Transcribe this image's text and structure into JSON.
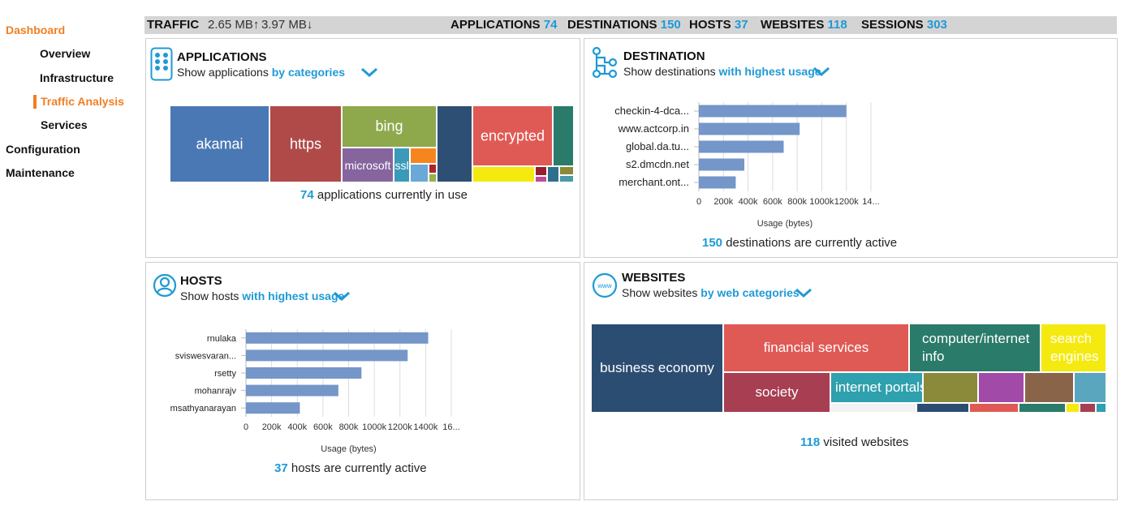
{
  "sidebar": {
    "dashboard": "Dashboard",
    "overview": "Overview",
    "infrastructure": "Infrastructure",
    "traffic_analysis": "Traffic Analysis",
    "services": "Services",
    "configuration": "Configuration",
    "maintenance": "Maintenance"
  },
  "topbar": {
    "traffic_label": "TRAFFIC",
    "upload": "2.65 MB↑",
    "download": "3.97 MB↓",
    "applications_label": "APPLICATIONS",
    "applications_count": "74",
    "destinations_label": "DESTINATIONS",
    "destinations_count": "150",
    "hosts_label": "HOSTS",
    "hosts_count": "37",
    "websites_label": "WEBSITES",
    "websites_count": "118",
    "sessions_label": "SESSIONS",
    "sessions_count": "303"
  },
  "applications": {
    "title": "APPLICATIONS",
    "subtitle": "Show applications ",
    "filter": "by categories",
    "footer_count": "74",
    "footer_text": " applications currently in use",
    "tiles": {
      "akamai": "akamai",
      "https": "https",
      "bing": "bing",
      "microsoft": "microsoft",
      "ssl": "ssl",
      "encrypted": "encrypted"
    }
  },
  "destination": {
    "title": "DESTINATION",
    "subtitle": "Show destinations ",
    "filter": "with highest usage",
    "footer_count": "150",
    "footer_text": " destinations are currently active"
  },
  "hosts": {
    "title": "HOSTS",
    "subtitle": "Show hosts ",
    "filter": "with highest usage",
    "footer_count": "37",
    "footer_text": " hosts are currently active"
  },
  "websites": {
    "title": "WEBSITES",
    "subtitle": "Show websites ",
    "filter": "by web categories",
    "footer_count": "118",
    "footer_text": " visited websites",
    "tiles": {
      "business_economy": "business economy",
      "financial_services": "financial services",
      "computer_internet_info_1": "computer/internet",
      "computer_internet_info_2": "info",
      "search_engines_1": "search",
      "search_engines_2": "engines",
      "society": "society",
      "internet_portals": "internet portals"
    }
  },
  "chart_data": [
    {
      "type": "bar",
      "orientation": "horizontal",
      "categories": [
        "checkin-4-dca...",
        "www.actcorp.in",
        "global.da.tu...",
        "s2.dmcdn.net",
        "merchant.ont..."
      ],
      "values": [
        1200000,
        820000,
        690000,
        370000,
        300000
      ],
      "xlabel": "Usage (bytes)",
      "ticks": [
        "0",
        "200k",
        "400k",
        "600k",
        "800k",
        "1000k",
        "1200k",
        "14..."
      ],
      "xlim": [
        0,
        1400000
      ],
      "color": "#7496c8"
    },
    {
      "type": "bar",
      "orientation": "horizontal",
      "categories": [
        "rnulaka",
        "sviswesvaran...",
        "rsetty",
        "mohanrajv",
        "msathyanarayan"
      ],
      "values": [
        1420000,
        1260000,
        900000,
        720000,
        420000
      ],
      "xlabel": "Usage (bytes)",
      "ticks": [
        "0",
        "200k",
        "400k",
        "600k",
        "800k",
        "1000k",
        "1200k",
        "1400k",
        "16..."
      ],
      "xlim": [
        0,
        1600000
      ],
      "color": "#7496c8"
    }
  ]
}
